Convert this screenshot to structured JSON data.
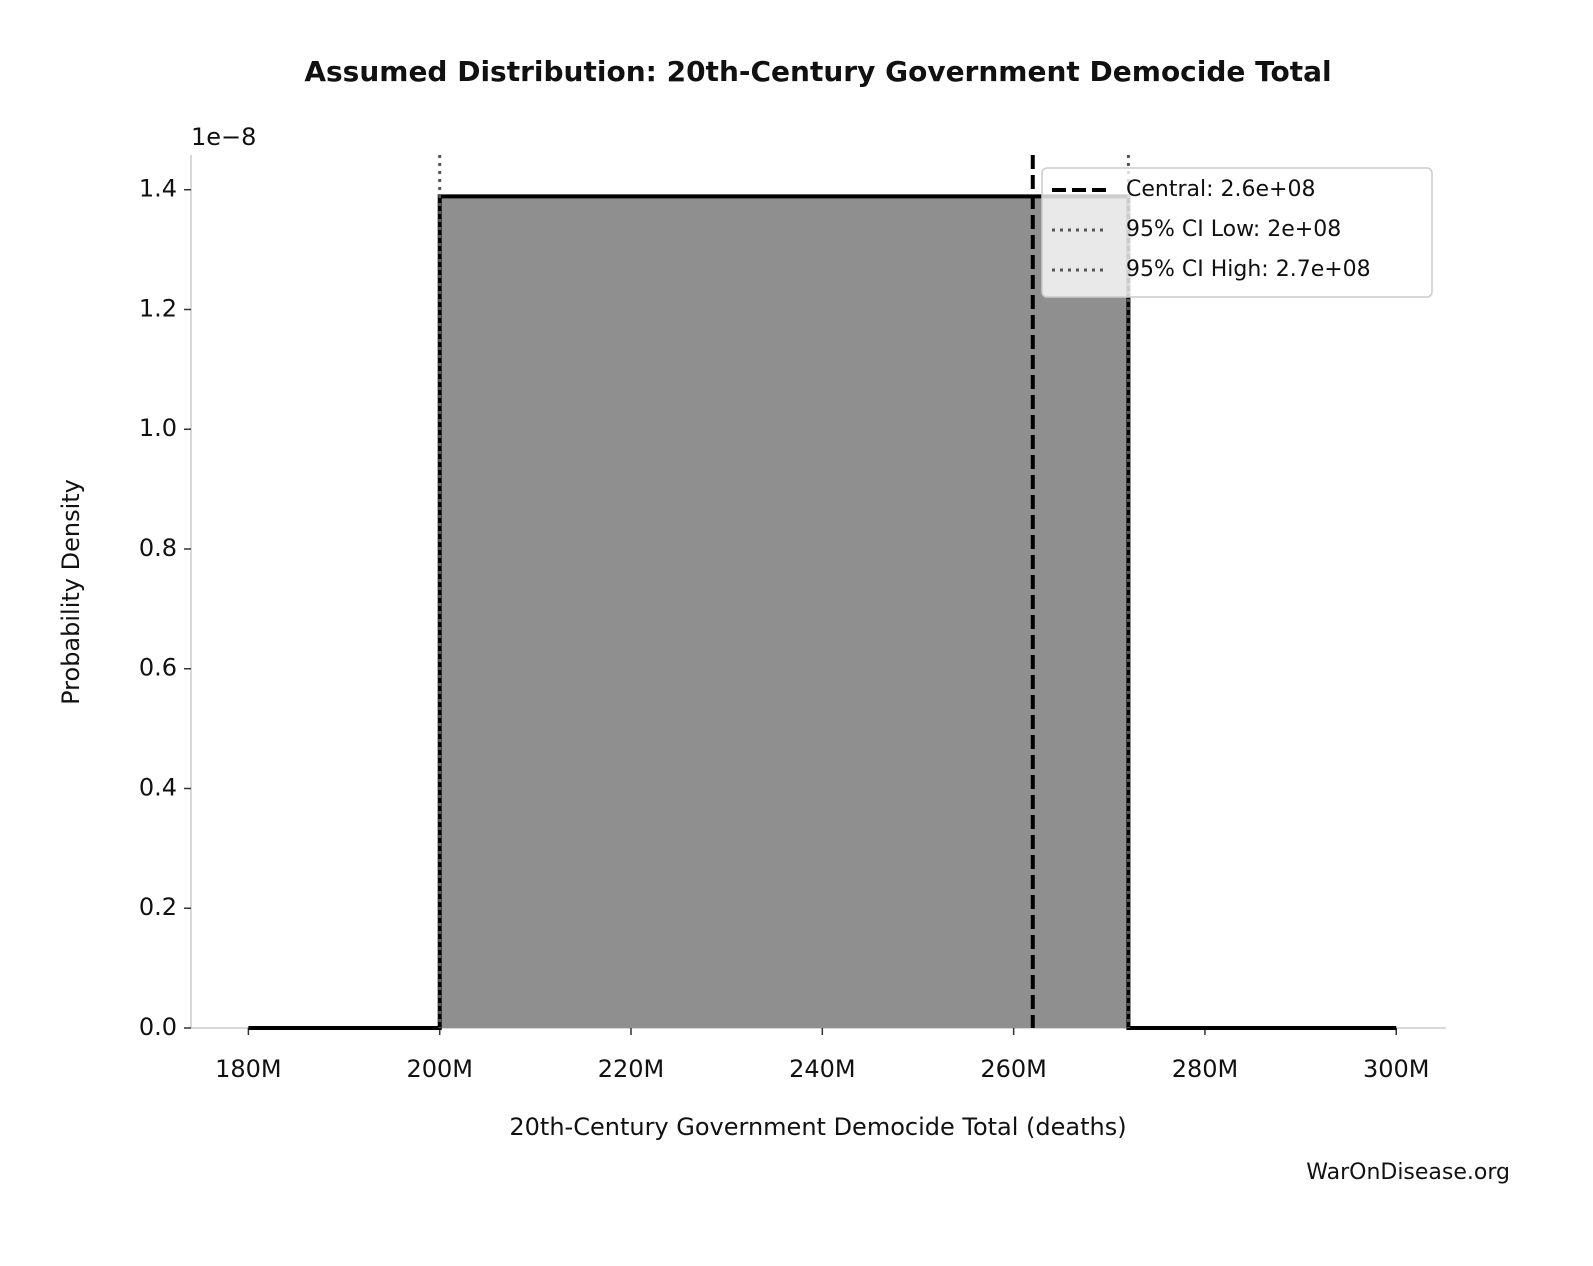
{
  "chart_data": {
    "type": "area-line",
    "title": "Assumed Distribution: 20th-Century Government Democide Total",
    "xlabel": "20th-Century Government Democide Total (deaths)",
    "ylabel": "Probability Density",
    "y_offset_label": "1e−8",
    "watermark": "WarOnDisease.org",
    "x": [
      180000000,
      200000000,
      200000000,
      272000000,
      272000000,
      300000000
    ],
    "values": [
      0,
      0,
      1.389,
      1.389,
      0,
      0
    ],
    "line_color": "#000000",
    "fill_color": "#8f8f8f",
    "xlim": [
      174000000,
      305200000
    ],
    "ylim": [
      0,
      1.458
    ],
    "xticks": [
      {
        "value": 180000000,
        "label": "180M"
      },
      {
        "value": 200000000,
        "label": "200M"
      },
      {
        "value": 220000000,
        "label": "220M"
      },
      {
        "value": 240000000,
        "label": "240M"
      },
      {
        "value": 260000000,
        "label": "260M"
      },
      {
        "value": 280000000,
        "label": "280M"
      },
      {
        "value": 300000000,
        "label": "300M"
      }
    ],
    "yticks": [
      {
        "value": 0,
        "label": "0.0"
      },
      {
        "value": 0.2,
        "label": "0.2"
      },
      {
        "value": 0.4,
        "label": "0.4"
      },
      {
        "value": 0.6,
        "label": "0.6"
      },
      {
        "value": 0.8,
        "label": "0.8"
      },
      {
        "value": 1.0,
        "label": "1.0"
      },
      {
        "value": 1.2,
        "label": "1.2"
      },
      {
        "value": 1.4,
        "label": "1.4"
      }
    ],
    "vlines": [
      {
        "name": "Central: 2.6e+08",
        "value": 262000000,
        "style": "dashed",
        "color": "#000000"
      },
      {
        "name": "95% CI Low: 2e+08",
        "value": 200000000,
        "style": "dotted",
        "color": "#555555"
      },
      {
        "name": "95% CI High: 2.7e+08",
        "value": 272000000,
        "style": "dotted",
        "color": "#555555"
      }
    ],
    "legend": "upper right",
    "grid": false
  }
}
